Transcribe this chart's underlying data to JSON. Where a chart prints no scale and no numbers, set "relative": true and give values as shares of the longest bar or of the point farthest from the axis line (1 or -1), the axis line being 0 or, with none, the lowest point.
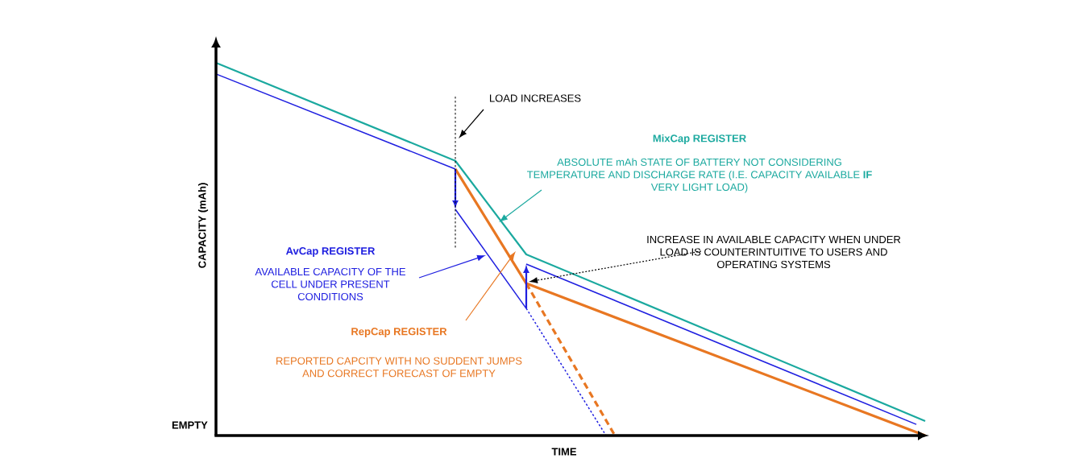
{
  "chart_data": {
    "type": "line",
    "relative": true,
    "xlabel": "TIME",
    "ylabel": "CAPACITY (mAh)",
    "marker": "none",
    "categories": [
      null,
      null,
      null,
      null,
      null,
      null,
      null,
      null,
      null,
      null,
      null,
      null,
      null,
      null,
      null,
      null,
      null,
      null,
      null,
      null,
      null,
      null,
      null,
      null,
      null,
      null,
      null,
      null,
      null,
      null,
      null,
      null,
      null,
      null,
      null,
      null,
      null,
      null,
      null,
      null,
      null,
      null,
      null,
      null,
      null,
      null,
      null,
      null,
      null,
      null,
      null,
      null,
      null,
      null,
      null,
      null,
      null,
      null,
      null,
      null,
      null,
      null,
      null,
      null,
      null,
      null,
      null,
      null,
      null,
      null,
      null,
      null,
      null,
      null,
      null,
      null,
      null,
      null,
      null,
      null,
      null
    ],
    "series": [
      {
        "color": "#1ba99f",
        "line_style": "solid",
        "values": [
          1.0,
          null,
          null,
          null,
          null,
          null,
          null,
          null,
          null,
          null,
          null,
          null,
          null,
          null,
          null,
          null,
          null,
          null,
          null,
          null,
          null,
          null,
          null,
          null,
          null,
          null,
          null,
          0.737,
          null,
          null,
          null,
          null,
          null,
          null,
          null,
          0.486,
          null,
          null,
          null,
          null,
          null,
          null,
          null,
          null,
          null,
          null,
          null,
          null,
          null,
          null,
          null,
          null,
          null,
          null,
          null,
          null,
          null,
          null,
          null,
          null,
          null,
          null,
          null,
          null,
          null,
          null,
          null,
          null,
          null,
          null,
          null,
          null,
          null,
          null,
          null,
          null,
          null,
          null,
          null,
          null,
          0.039
        ]
      },
      {
        "color": "#1f1fe0",
        "line_style": "solid",
        "values": [
          0.97,
          null,
          null,
          null,
          null,
          null,
          null,
          null,
          null,
          null,
          null,
          null,
          null,
          null,
          null,
          null,
          null,
          null,
          null,
          null,
          null,
          null,
          null,
          null,
          null,
          null,
          null,
          0.715,
          null,
          null,
          null,
          null,
          null,
          null,
          null,
          null,
          null,
          null,
          null,
          null,
          null,
          null,
          null,
          null,
          null,
          null,
          null,
          null,
          null,
          null,
          null,
          null,
          null,
          null,
          null,
          null,
          null,
          null,
          null,
          null,
          null,
          null,
          null,
          null,
          null,
          null,
          null,
          null,
          null,
          null,
          null,
          null,
          null,
          null,
          null,
          null,
          null,
          null,
          null,
          null,
          null
        ]
      },
      {
        "color": "#1f1fe0",
        "line_style": "solid",
        "values": [
          null,
          null,
          null,
          null,
          null,
          null,
          null,
          null,
          null,
          null,
          null,
          null,
          null,
          null,
          null,
          null,
          null,
          null,
          null,
          null,
          null,
          null,
          null,
          null,
          null,
          null,
          null,
          0.607,
          null,
          null,
          null,
          null,
          null,
          null,
          null,
          0.341,
          null,
          null,
          null,
          null,
          null,
          null,
          null,
          null,
          null,
          null,
          null,
          null,
          null,
          null,
          null,
          null,
          null,
          null,
          null,
          null,
          null,
          null,
          null,
          null,
          null,
          null,
          null,
          null,
          null,
          null,
          null,
          null,
          null,
          null,
          null,
          null,
          null,
          null,
          null,
          null,
          null,
          null,
          null,
          null,
          null
        ]
      },
      {
        "color": "#1f1fe0",
        "line_style": "solid",
        "values": [
          null,
          null,
          null,
          null,
          null,
          null,
          null,
          null,
          null,
          null,
          null,
          null,
          null,
          null,
          null,
          null,
          null,
          null,
          null,
          null,
          null,
          null,
          null,
          null,
          null,
          null,
          null,
          null,
          null,
          null,
          null,
          null,
          null,
          null,
          null,
          0.46,
          null,
          null,
          null,
          null,
          null,
          null,
          null,
          null,
          null,
          null,
          null,
          null,
          null,
          null,
          null,
          null,
          null,
          null,
          null,
          null,
          null,
          null,
          null,
          null,
          null,
          null,
          null,
          null,
          null,
          null,
          null,
          null,
          null,
          null,
          null,
          null,
          null,
          null,
          null,
          null,
          null,
          null,
          null,
          0.03,
          null
        ]
      },
      {
        "color": "#e87722",
        "line_style": "solid",
        "values": [
          null,
          null,
          null,
          null,
          null,
          null,
          null,
          null,
          null,
          null,
          null,
          null,
          null,
          null,
          null,
          null,
          null,
          null,
          null,
          null,
          null,
          null,
          null,
          null,
          null,
          null,
          null,
          0.715,
          null,
          null,
          null,
          null,
          null,
          null,
          null,
          0.408,
          null,
          null,
          null,
          null,
          null,
          null,
          null,
          null,
          null,
          null,
          null,
          null,
          null,
          null,
          null,
          null,
          null,
          null,
          null,
          null,
          null,
          null,
          null,
          null,
          null,
          null,
          null,
          null,
          null,
          null,
          null,
          null,
          null,
          null,
          null,
          null,
          null,
          null,
          null,
          null,
          null,
          null,
          null,
          null,
          0.0
        ]
      },
      {
        "color": "#1f1fe0",
        "line_style": "dotted",
        "values": [
          null,
          null,
          null,
          null,
          null,
          null,
          null,
          null,
          null,
          null,
          null,
          null,
          null,
          null,
          null,
          null,
          null,
          null,
          null,
          null,
          null,
          null,
          null,
          null,
          null,
          null,
          null,
          null,
          null,
          null,
          null,
          null,
          null,
          null,
          null,
          0.341,
          null,
          null,
          null,
          null,
          null,
          null,
          null,
          null,
          0.0,
          null,
          null,
          null,
          null,
          null,
          null,
          null,
          null,
          null,
          null,
          null,
          null,
          null,
          null,
          null,
          null,
          null,
          null,
          null,
          null,
          null,
          null,
          null,
          null,
          null,
          null,
          null,
          null,
          null,
          null,
          null,
          null,
          null,
          null,
          null,
          null
        ]
      },
      {
        "color": "#e87722",
        "line_style": "dashed",
        "values": [
          null,
          null,
          null,
          null,
          null,
          null,
          null,
          null,
          null,
          null,
          null,
          null,
          null,
          null,
          null,
          null,
          null,
          null,
          null,
          null,
          null,
          null,
          null,
          null,
          null,
          null,
          null,
          null,
          null,
          null,
          null,
          null,
          null,
          null,
          null,
          0.408,
          null,
          null,
          null,
          null,
          null,
          null,
          null,
          null,
          null,
          0.0,
          null,
          null,
          null,
          null,
          null,
          null,
          null,
          null,
          null,
          null,
          null,
          null,
          null,
          null,
          null,
          null,
          null,
          null,
          null,
          null,
          null,
          null,
          null,
          null,
          null,
          null,
          null,
          null,
          null,
          null,
          null,
          null,
          null,
          null,
          null
        ]
      }
    ],
    "annotations": [
      "EMPTY",
      "MixCap REGISTER",
      "ABSOLUTE mAh STATE OF BATTERY NOT CONSIDERING TEMPERATURE AND DISCHARGE RATE (I.E. CAPACITY AVAILABLE **IF** VERY LIGHT LOAD)",
      "AvCap REGISTER",
      "AVAILABLE CAPACITY OF THE CELL UNDER PRESENT CONDITIONS",
      "RepCap REGISTER",
      "REPORTED CAPCITY WITH NO SUDDENT JUMPS AND CORRECT FORECAST OF EMPTY",
      "INCREASE IN AVAILABLE CAPACITY WHEN UNDER LOAD IS COUNTERINTUITIVE TO USERS AND OPERATING SYSTEMS",
      "LOAD INCREASES"
    ]
  }
}
